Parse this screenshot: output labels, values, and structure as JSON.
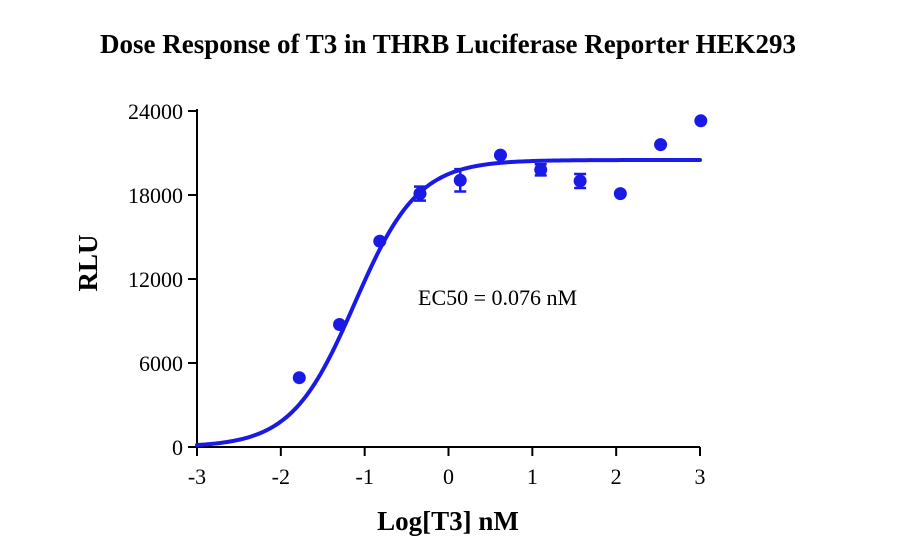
{
  "chart_data": {
    "type": "scatter",
    "title": "Dose Response of T3 in THRB Luciferase Reporter HEK293",
    "xlabel": "Log[T3] nM",
    "ylabel": "RLU",
    "xlim": [
      -3,
      3
    ],
    "ylim": [
      0,
      24000
    ],
    "xticks": [
      -3,
      -2,
      -1,
      0,
      1,
      2,
      3
    ],
    "xtick_labels": [
      "-3",
      "-2",
      "-1",
      "0",
      "1",
      "2",
      "3"
    ],
    "yticks": [
      0,
      6000,
      12000,
      18000,
      24000
    ],
    "ytick_labels": [
      "0",
      "6000",
      "12000",
      "18000",
      "24000"
    ],
    "grid": false,
    "color": "#1a1ae6",
    "points": [
      {
        "x": -1.78,
        "y": 4950,
        "err": 150
      },
      {
        "x": -1.3,
        "y": 8750,
        "err": 150
      },
      {
        "x": -0.82,
        "y": 14700,
        "err": 150
      },
      {
        "x": -0.34,
        "y": 18100,
        "err": 500
      },
      {
        "x": 0.14,
        "y": 19050,
        "err": 800
      },
      {
        "x": 0.62,
        "y": 20850,
        "err": 150
      },
      {
        "x": 1.1,
        "y": 19800,
        "err": 400
      },
      {
        "x": 1.57,
        "y": 19000,
        "err": 500
      },
      {
        "x": 2.05,
        "y": 18100,
        "err": 150
      },
      {
        "x": 2.53,
        "y": 21600,
        "err": 150
      },
      {
        "x": 3.01,
        "y": 23300,
        "err": 150
      }
    ],
    "fit": {
      "bottom": 0,
      "top": 20500,
      "log_ec50": -1.12,
      "hill_slope": 1.15
    },
    "annotation": "EC50 = 0.076 nM"
  }
}
